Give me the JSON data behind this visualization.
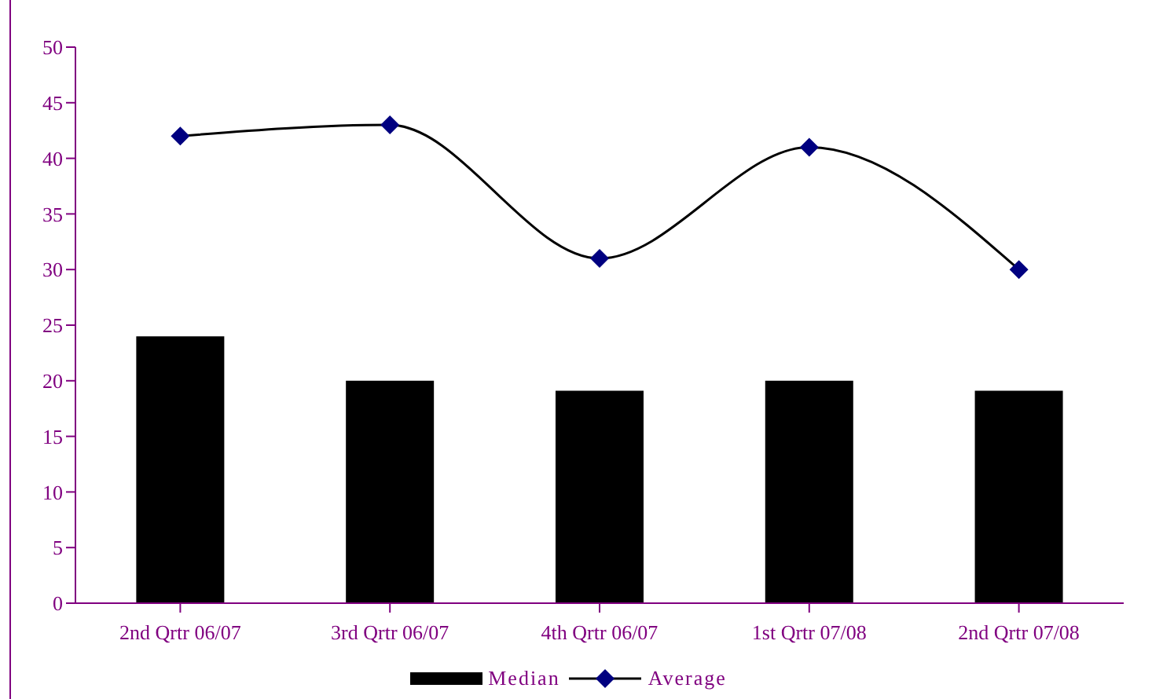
{
  "chart_data": {
    "type": "bar",
    "categories": [
      "2nd Qrtr 06/07",
      "3rd Qrtr 06/07",
      "4th Qrtr 06/07",
      "1st Qrtr 07/08",
      "2nd Qrtr 07/08"
    ],
    "series": [
      {
        "name": "Median",
        "color": "#000000",
        "values": [
          24,
          20,
          19.1,
          20,
          19.1
        ]
      },
      {
        "name": "Average",
        "type": "line",
        "color": "#000000",
        "marker": "diamond",
        "values": [
          42,
          43,
          31,
          41,
          30
        ]
      }
    ],
    "ylim": [
      0,
      50
    ],
    "yticks": [
      0,
      5,
      10,
      15,
      20,
      25,
      30,
      35,
      40,
      45,
      50
    ],
    "grid": false,
    "legend": "bottom"
  }
}
